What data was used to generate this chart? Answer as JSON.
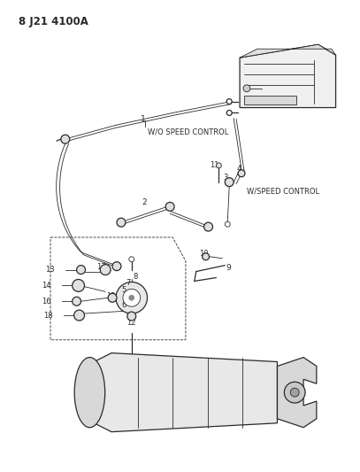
{
  "title": "8 J21 4100A",
  "bg_color": "#ffffff",
  "line_color": "#2a2a2a",
  "wo_speed": "W/O SPEED CONTROL",
  "w_speed": "W/SPEED CONTROL",
  "fig_w": 4.07,
  "fig_h": 5.33,
  "dpi": 100
}
